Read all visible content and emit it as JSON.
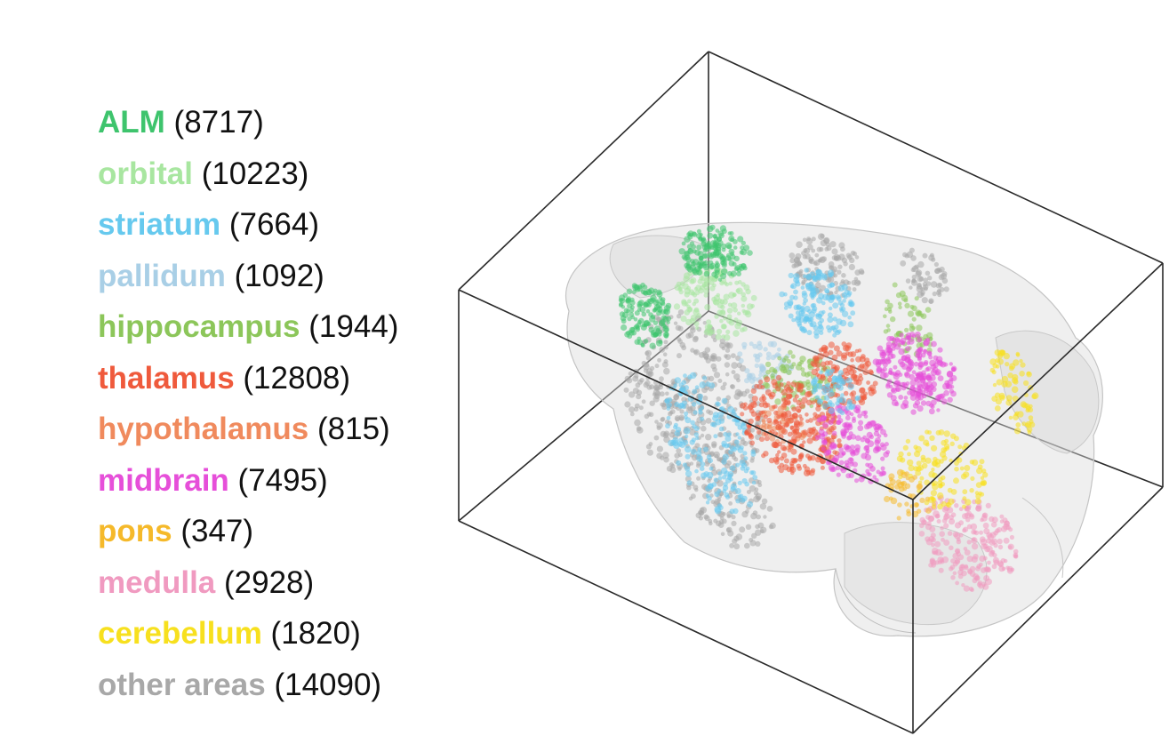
{
  "legend": {
    "items": [
      {
        "name": "ALM",
        "count": "(8717)",
        "color": "#3ec46d"
      },
      {
        "name": "orbital",
        "count": "(10223)",
        "color": "#a8e6a0"
      },
      {
        "name": "striatum",
        "count": "(7664)",
        "color": "#66c9ee"
      },
      {
        "name": "pallidum",
        "count": "(1092)",
        "color": "#a9cfe6"
      },
      {
        "name": "hippocampus",
        "count": "(1944)",
        "color": "#8cc65a"
      },
      {
        "name": "thalamus",
        "count": "(12808)",
        "color": "#ef5a3c"
      },
      {
        "name": "hypothalamus",
        "count": "(815)",
        "color": "#f08a5d"
      },
      {
        "name": "midbrain",
        "count": "(7495)",
        "color": "#e64fd9"
      },
      {
        "name": "pons",
        "count": "(347)",
        "color": "#f5b92a"
      },
      {
        "name": "medulla",
        "count": "(2928)",
        "color": "#f09ac0"
      },
      {
        "name": "cerebellum",
        "count": "(1820)",
        "color": "#f7e01e"
      },
      {
        "name": "other areas",
        "count": "(14090)",
        "color": "#a8a8a8"
      }
    ]
  }
}
